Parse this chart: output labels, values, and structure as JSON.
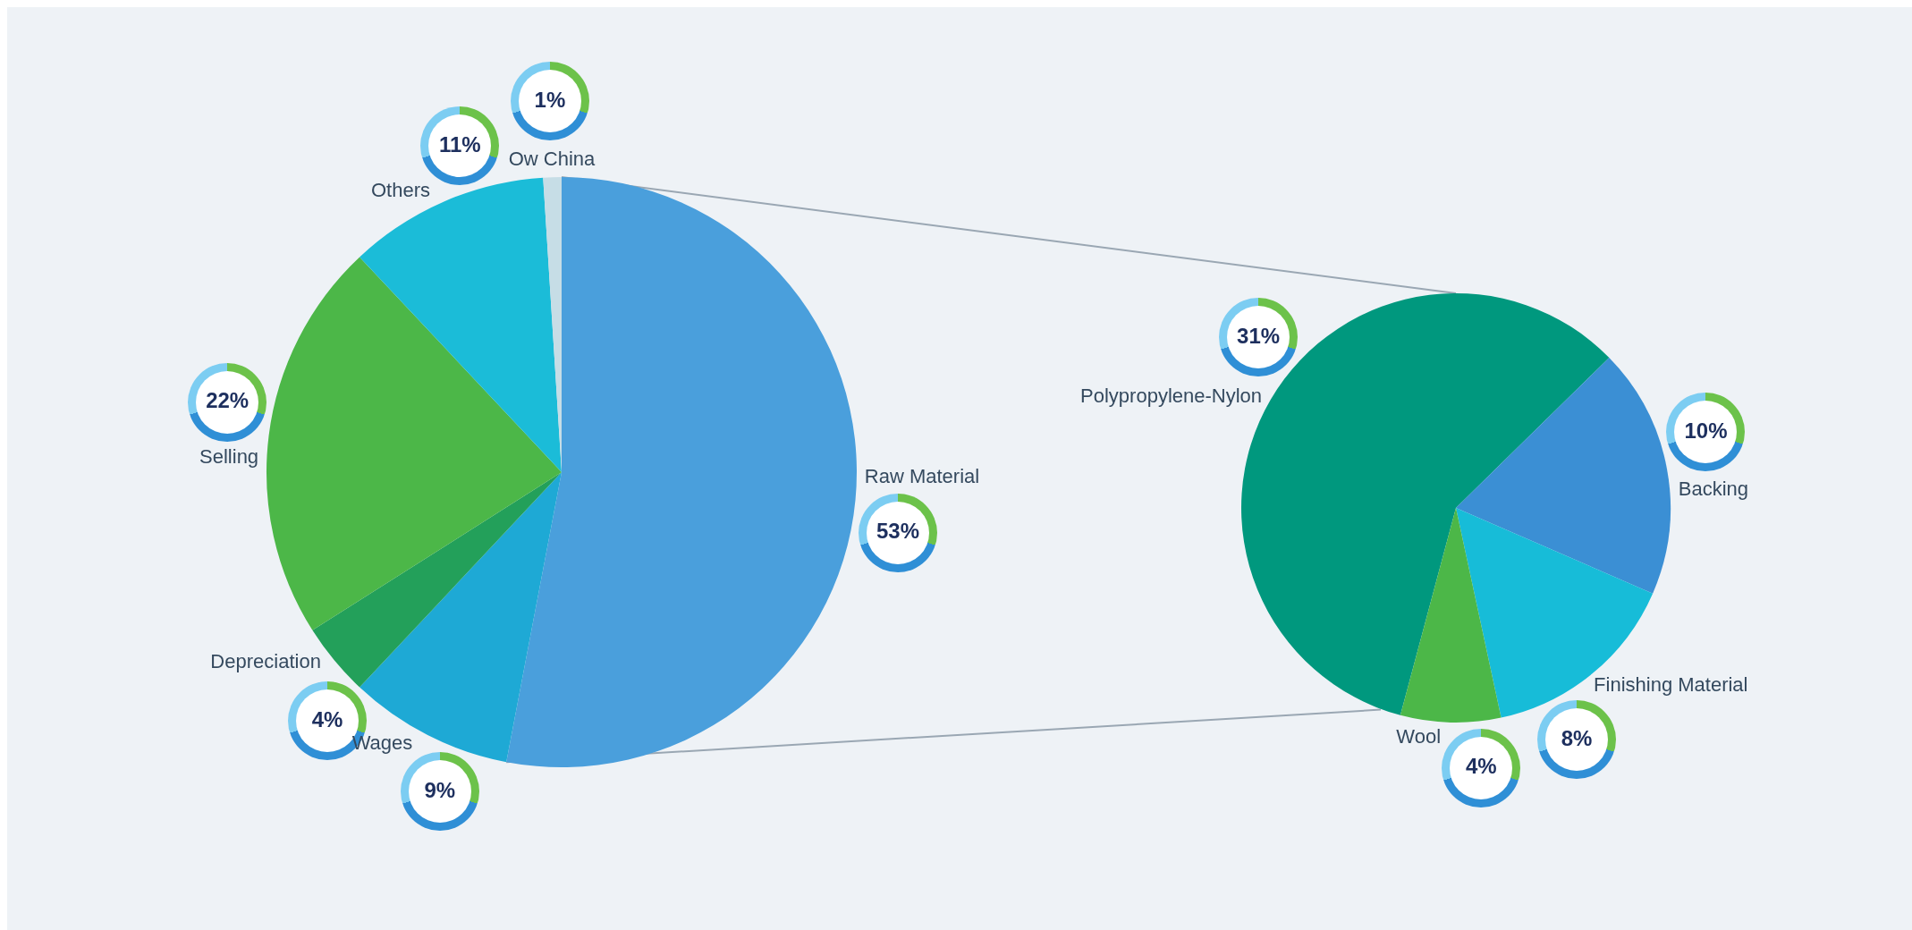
{
  "chart_data": [
    {
      "type": "pie",
      "categories": [
        "Raw Material",
        "Wages",
        "Depreciation",
        "Selling",
        "Others",
        "Ow China"
      ],
      "values": [
        53,
        9,
        4,
        22,
        11,
        1
      ],
      "value_labels": [
        "53%",
        "9%",
        "4%",
        "22%",
        "11%",
        "1%"
      ],
      "colors": [
        "#4a9fdc",
        "#1ea9d5",
        "#23a05a",
        "#4cb748",
        "#1bbcd8",
        "#c6dde6"
      ],
      "legend": false
    },
    {
      "type": "pie",
      "categories": [
        "Polypropylene-Nylon",
        "Backing",
        "Finishing Material",
        "Wool"
      ],
      "values": [
        31,
        10,
        8,
        4
      ],
      "value_labels": [
        "31%",
        "10%",
        "8%",
        "4%"
      ],
      "colors": [
        "#00987e",
        "#3b8fd4",
        "#17bcd8",
        "#4cb748"
      ],
      "legend": false
    }
  ]
}
